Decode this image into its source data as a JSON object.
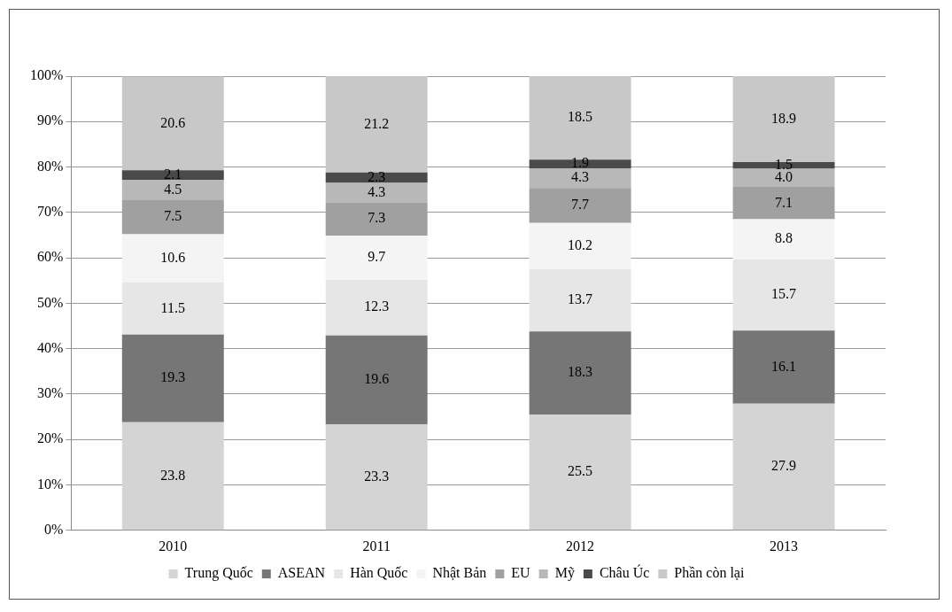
{
  "chart_data": {
    "type": "bar",
    "stacked": true,
    "categories": [
      "2010",
      "2011",
      "2012",
      "2013"
    ],
    "series": [
      {
        "name": "Trung Quốc",
        "color": "#d4d4d4",
        "values": [
          23.8,
          23.3,
          25.5,
          27.9
        ]
      },
      {
        "name": "ASEAN",
        "color": "#767676",
        "values": [
          19.3,
          19.6,
          18.3,
          16.1
        ]
      },
      {
        "name": "Hàn Quốc",
        "color": "#e6e6e6",
        "values": [
          11.5,
          12.3,
          13.7,
          15.7
        ]
      },
      {
        "name": "Nhật Bản",
        "color": "#f4f4f4",
        "values": [
          10.6,
          9.7,
          10.2,
          8.8
        ]
      },
      {
        "name": "EU",
        "color": "#a0a0a0",
        "values": [
          7.5,
          7.3,
          7.7,
          7.1
        ]
      },
      {
        "name": "Mỹ",
        "color": "#b8b8b8",
        "values": [
          4.5,
          4.3,
          4.3,
          4.0
        ],
        "value_labels": [
          "4.5",
          "4.3",
          "4.3",
          "4.0"
        ]
      },
      {
        "name": "Châu Úc",
        "color": "#4a4a4a",
        "values": [
          2.1,
          2.3,
          1.9,
          1.5
        ]
      },
      {
        "name": "Phần còn lại",
        "color": "#c8c8c8",
        "values": [
          20.6,
          21.2,
          18.5,
          18.9
        ]
      }
    ],
    "ylim": [
      0,
      100
    ],
    "yticks": [
      {
        "value": 0,
        "label": "0%"
      },
      {
        "value": 10,
        "label": "10%"
      },
      {
        "value": 20,
        "label": "20%"
      },
      {
        "value": 30,
        "label": "30%"
      },
      {
        "value": 40,
        "label": "40%"
      },
      {
        "value": 50,
        "label": "50%"
      },
      {
        "value": 60,
        "label": "60%"
      },
      {
        "value": 70,
        "label": "70%"
      },
      {
        "value": 80,
        "label": "80%"
      },
      {
        "value": 90,
        "label": "90%"
      },
      {
        "value": 100,
        "label": "100%"
      }
    ],
    "grid": "y",
    "legend": "bottom",
    "data_labels": true
  }
}
